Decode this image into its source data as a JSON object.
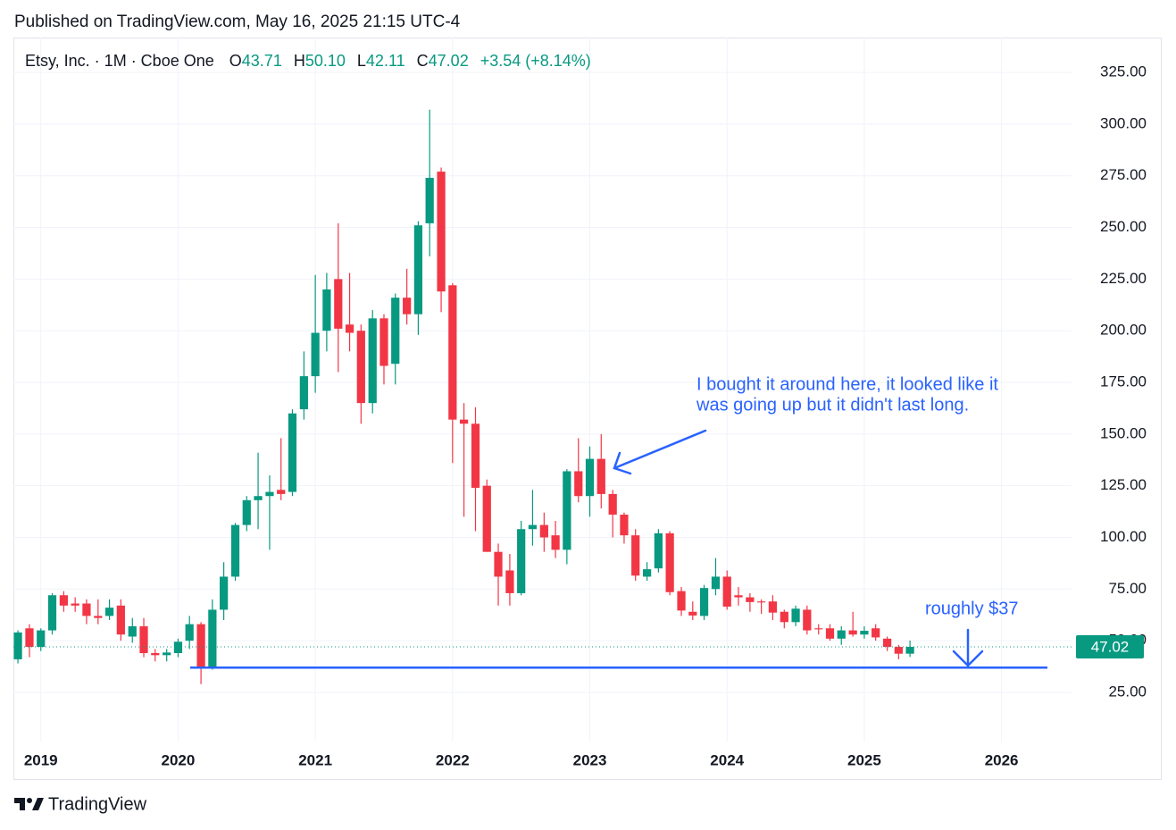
{
  "header": {
    "published": "Published on TradingView.com, May 16, 2025 21:15 UTC-4"
  },
  "footer": {
    "brand": "TradingView"
  },
  "chart_data": {
    "type": "candlestick",
    "symbol": "Etsy, Inc. · 1M · Cboe One",
    "ohlc_names": [
      "O",
      "H",
      "L",
      "C"
    ],
    "legend_labels": [
      "43.71",
      "50.10",
      "42.11",
      "47.02"
    ],
    "change_label": "+3.54 (+8.14%)",
    "up_color": "#089981",
    "down_color": "#f23645",
    "x": [
      2018.833,
      2018.917,
      2019,
      2019.083,
      2019.167,
      2019.25,
      2019.333,
      2019.417,
      2019.5,
      2019.583,
      2019.667,
      2019.75,
      2019.833,
      2019.917,
      2020,
      2020.083,
      2020.167,
      2020.25,
      2020.333,
      2020.417,
      2020.5,
      2020.583,
      2020.667,
      2020.75,
      2020.833,
      2020.917,
      2021,
      2021.083,
      2021.167,
      2021.25,
      2021.333,
      2021.417,
      2021.5,
      2021.583,
      2021.667,
      2021.75,
      2021.833,
      2021.917,
      2022,
      2022.083,
      2022.167,
      2022.25,
      2022.333,
      2022.417,
      2022.5,
      2022.583,
      2022.667,
      2022.75,
      2022.833,
      2022.917,
      2023,
      2023.083,
      2023.167,
      2023.25,
      2023.333,
      2023.417,
      2023.5,
      2023.583,
      2023.667,
      2023.75,
      2023.833,
      2023.917,
      2024,
      2024.083,
      2024.167,
      2024.25,
      2024.333,
      2024.417,
      2024.5,
      2024.583,
      2024.667,
      2024.75,
      2024.833,
      2024.917,
      2025,
      2025.083,
      2025.167,
      2025.25,
      2025.333
    ],
    "open": [
      41,
      56,
      47,
      55,
      72,
      68,
      68,
      62,
      62,
      67,
      52,
      57,
      44,
      43,
      44,
      50,
      58,
      37,
      65,
      81,
      106,
      118,
      120,
      123,
      122,
      162,
      178,
      200,
      225,
      203,
      200,
      165,
      206,
      184,
      216,
      208,
      252,
      277,
      222,
      157,
      155,
      125,
      93,
      84,
      73,
      104,
      106,
      101,
      94,
      132,
      120,
      138,
      121,
      111,
      101,
      81,
      85,
      102,
      74,
      64,
      62,
      75,
      81,
      72,
      71,
      69,
      69,
      64,
      59,
      65,
      56,
      56,
      51,
      55,
      53,
      56,
      51,
      47,
      43.71
    ],
    "high": [
      55,
      58,
      56,
      73,
      74,
      71,
      70,
      70,
      70,
      70,
      61,
      61,
      46,
      46,
      51,
      62,
      59,
      70,
      88,
      107,
      120,
      141,
      130,
      148,
      162,
      190,
      227,
      228,
      252,
      228,
      203,
      210,
      208,
      218,
      230,
      253,
      307,
      279,
      223,
      165,
      163,
      128,
      97,
      92,
      108,
      123,
      112,
      108,
      133,
      148,
      144,
      150,
      123,
      112,
      104,
      88,
      104,
      103,
      76,
      69,
      77,
      90,
      84,
      76,
      73,
      70,
      72,
      65,
      67,
      67,
      58,
      58,
      57,
      64,
      57,
      58,
      52,
      48,
      50.1
    ],
    "low": [
      39,
      42,
      45,
      53,
      64,
      64,
      58,
      58,
      60,
      50,
      49,
      42,
      40,
      40,
      42,
      46,
      29,
      36,
      60,
      79,
      103,
      104,
      94,
      118,
      120,
      157,
      170,
      190,
      180,
      190,
      155,
      160,
      174,
      174,
      203,
      198,
      236,
      209,
      136,
      110,
      103,
      93,
      67,
      67,
      72,
      96,
      93,
      90,
      87,
      117,
      110,
      114,
      100,
      97,
      79,
      79,
      83,
      72,
      62,
      60,
      60,
      72,
      65,
      67,
      64,
      63,
      60,
      56,
      57,
      53,
      53,
      50,
      48,
      52,
      51,
      50,
      45,
      41,
      42.11
    ],
    "close": [
      54,
      47,
      55,
      72,
      67,
      67,
      62,
      61,
      66,
      53,
      57,
      44,
      43,
      44.3,
      49.5,
      58,
      37,
      65,
      81,
      106,
      118,
      120,
      122,
      121,
      160,
      178,
      199,
      220,
      201,
      199,
      165,
      206,
      183,
      216,
      208,
      251,
      274,
      219,
      157,
      155,
      124,
      93,
      81,
      73,
      104,
      106,
      100,
      94,
      132,
      120,
      138,
      121,
      111,
      101,
      81.5,
      84.6,
      102,
      73.5,
      64.6,
      62.2,
      75.5,
      81,
      66.5,
      71,
      68.7,
      68.5,
      63.6,
      59,
      65.5,
      55,
      55.5,
      51,
      55,
      53,
      54.8,
      51.6,
      47,
      43.7,
      47.02
    ],
    "xlim": [
      2018.8,
      2026.51
    ],
    "xticks": [
      2019,
      2020,
      2021,
      2022,
      2023,
      2024,
      2025,
      2026
    ],
    "ylim": [
      1.2,
      341.9
    ],
    "yticks": [
      {
        "value": 25,
        "label": "25.00"
      },
      {
        "value": 50,
        "label": "50.00"
      },
      {
        "value": 75,
        "label": "75.00"
      },
      {
        "value": 100,
        "label": "100.00"
      },
      {
        "value": 125,
        "label": "125.00"
      },
      {
        "value": 150,
        "label": "150.00"
      },
      {
        "value": 175,
        "label": "175.00"
      },
      {
        "value": 200,
        "label": "200.00"
      },
      {
        "value": 225,
        "label": "225.00"
      },
      {
        "value": 250,
        "label": "250.00"
      },
      {
        "value": 275,
        "label": "275.00"
      },
      {
        "value": 300,
        "label": "300.00"
      },
      {
        "value": 325,
        "label": "325.00"
      }
    ],
    "grid": true,
    "level": 37,
    "level_color": "#2962ff",
    "annotations": [
      {
        "lines": [
          "I bought it around here, it looked like it",
          "was going up but it didn't last long."
        ]
      },
      {
        "lines": [
          "roughly $37"
        ]
      }
    ]
  }
}
